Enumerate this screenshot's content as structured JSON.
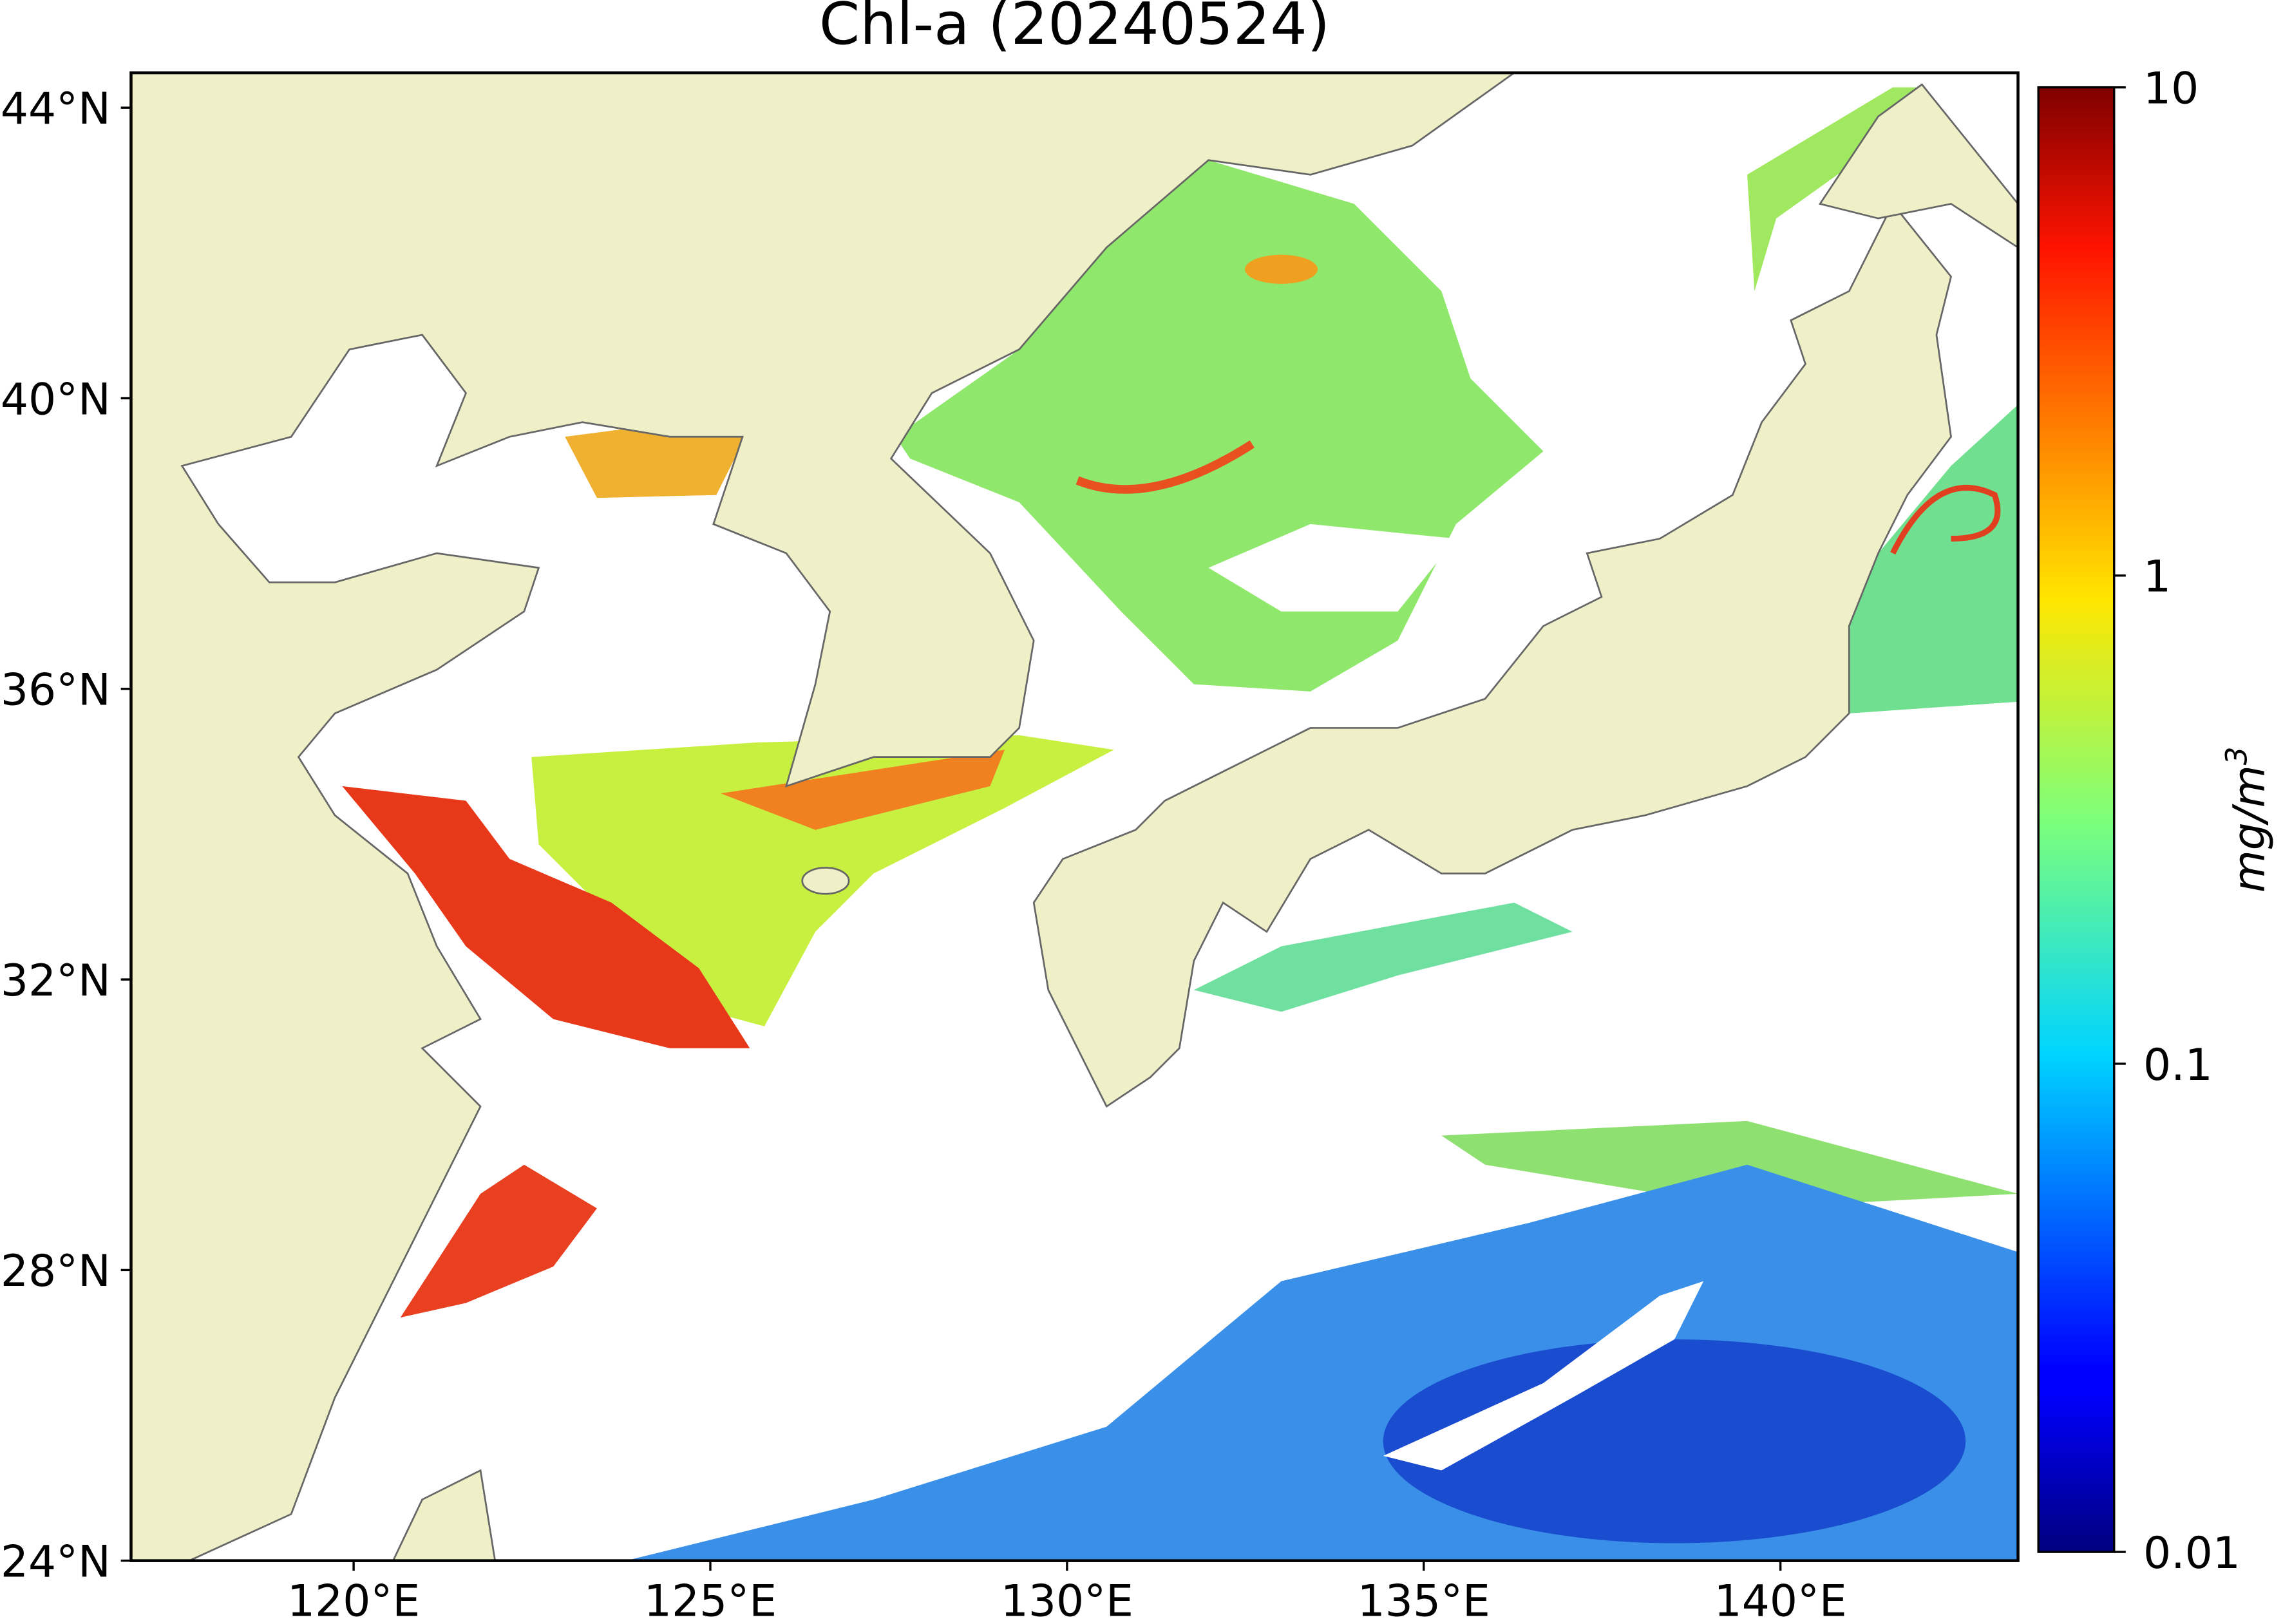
{
  "title": "Chl-a (20240524)",
  "map": {
    "xlim": [
      116.88,
      143.33
    ],
    "ylim": [
      24,
      44.48
    ],
    "xticks": [
      {
        "value": 120,
        "label": "120°E"
      },
      {
        "value": 125,
        "label": "125°E"
      },
      {
        "value": 130,
        "label": "130°E"
      },
      {
        "value": 135,
        "label": "135°E"
      },
      {
        "value": 140,
        "label": "140°E"
      }
    ],
    "yticks": [
      {
        "value": 24,
        "label": "24°N"
      },
      {
        "value": 28,
        "label": "28°N"
      },
      {
        "value": 32,
        "label": "32°N"
      },
      {
        "value": 36,
        "label": "36°N"
      },
      {
        "value": 40,
        "label": "40°N"
      },
      {
        "value": 44,
        "label": "44°N"
      }
    ]
  },
  "colorbar": {
    "clim": [
      0.01,
      10
    ],
    "scale": "log",
    "ticks": [
      0.01,
      0.1,
      1,
      10
    ],
    "label": "mg/m",
    "label_superscript": "3"
  }
}
